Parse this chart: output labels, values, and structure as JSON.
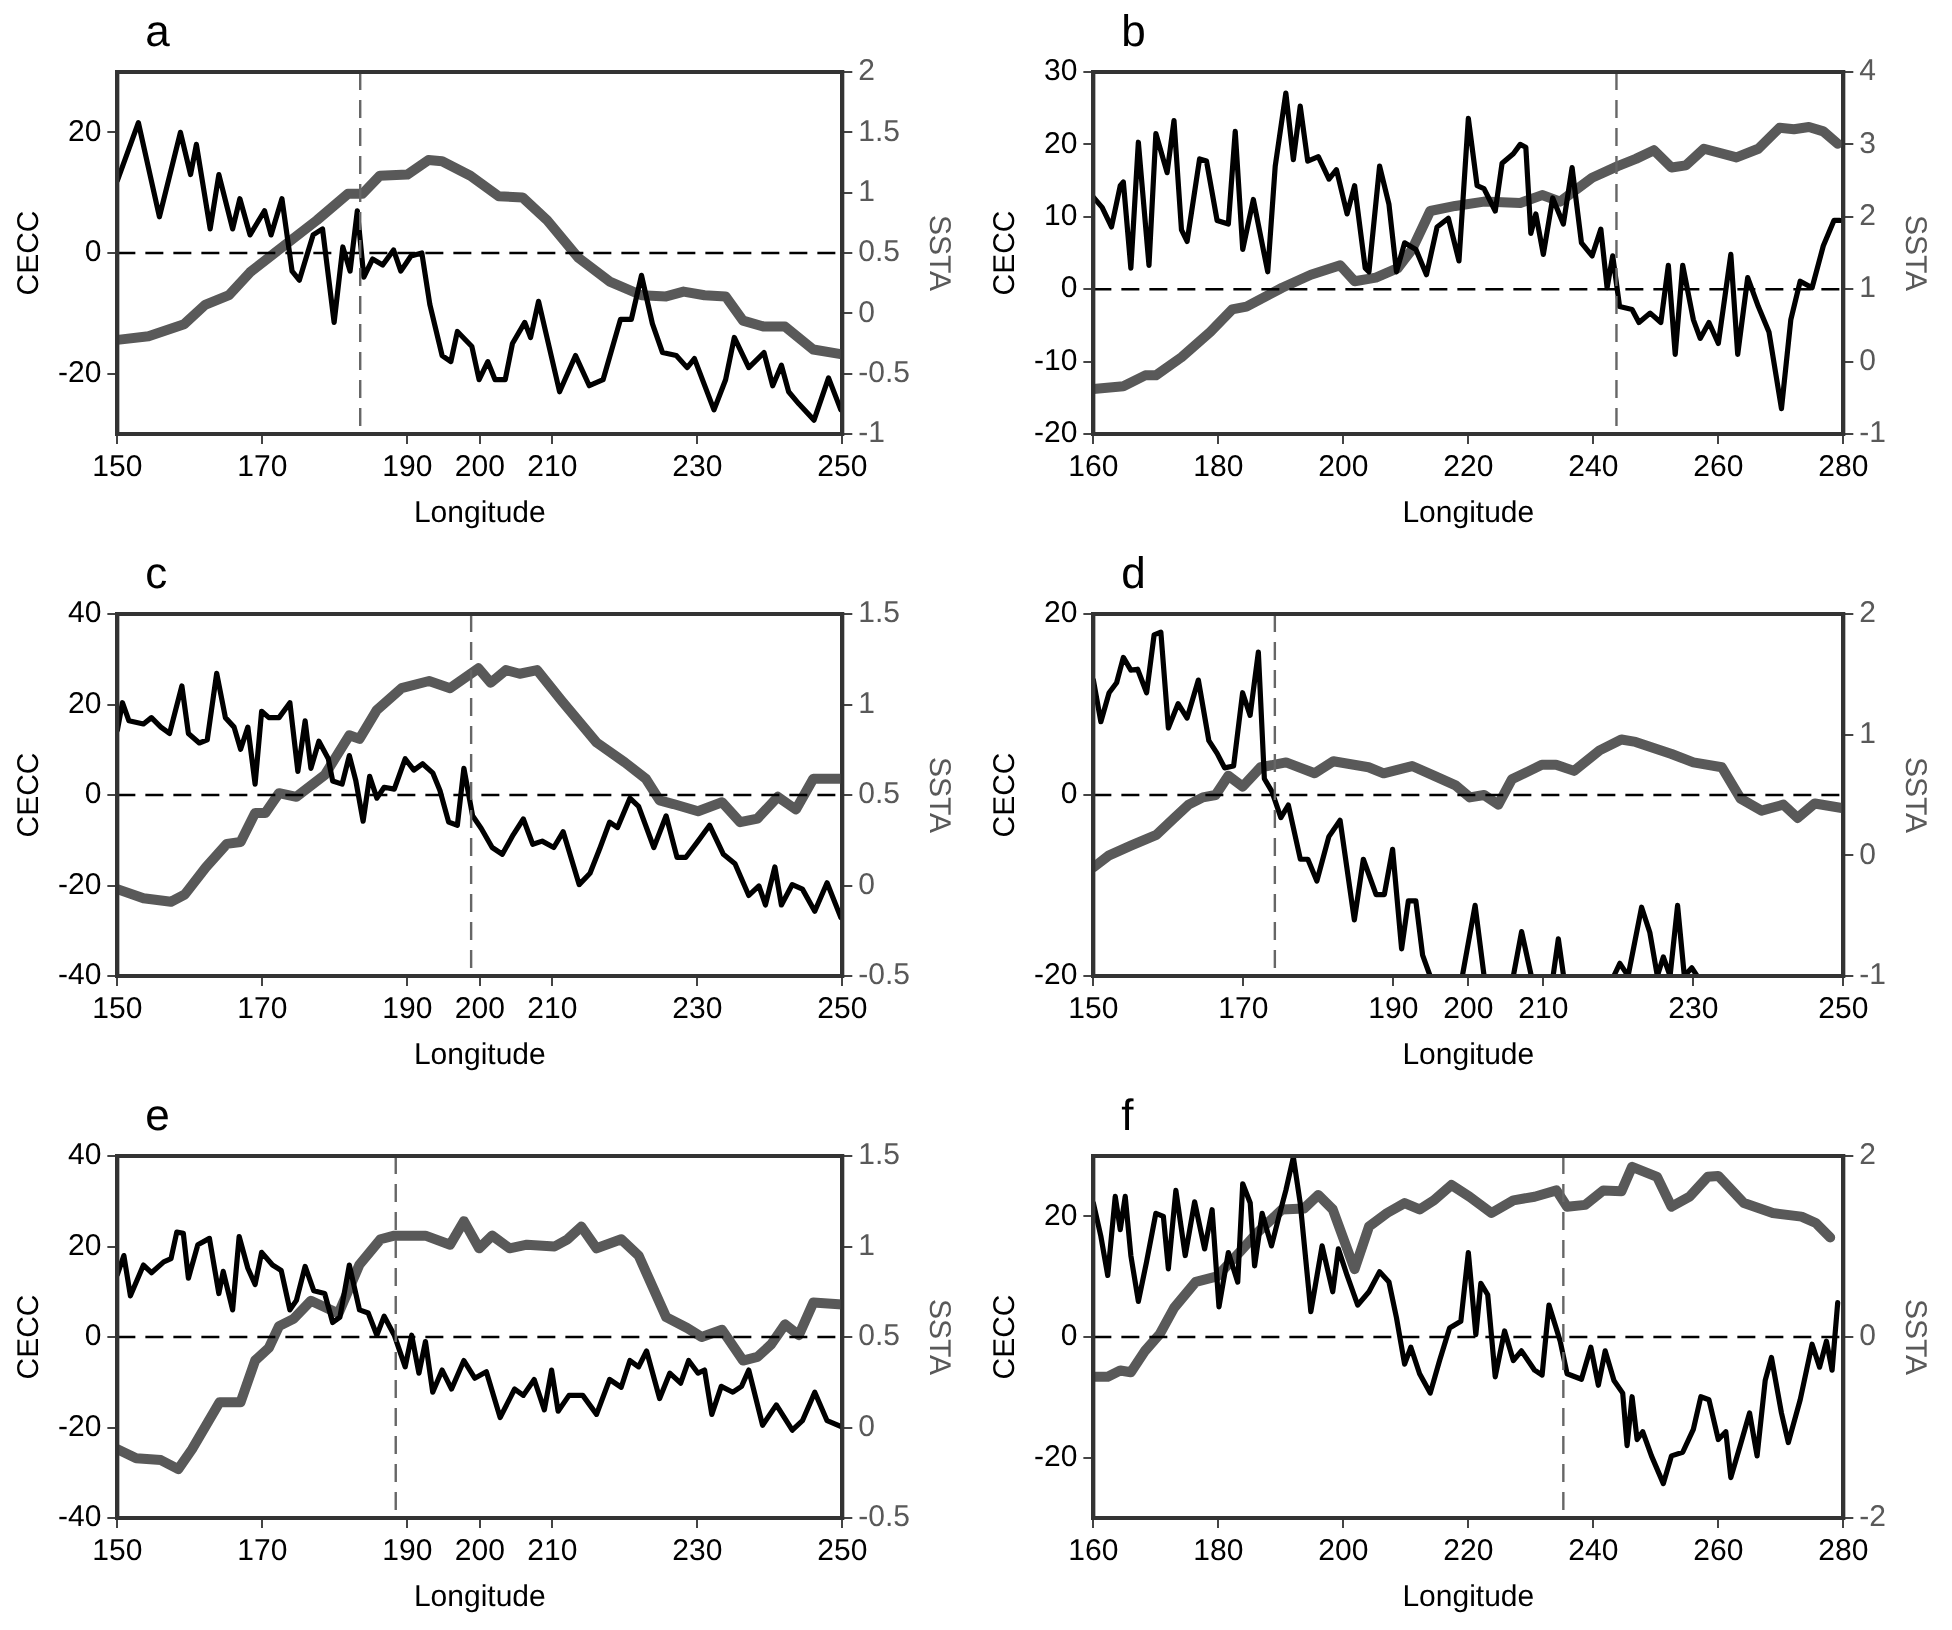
{
  "chart_data": [
    {
      "type": "line",
      "title": "a",
      "xlabel": "Longitude",
      "ylabel": "CECC",
      "y2label": "SSTA",
      "xlim": [
        150,
        250
      ],
      "xticks": [
        150,
        170,
        190,
        200,
        210,
        230,
        250
      ],
      "ylim": [
        -30,
        30
      ],
      "yticks": [
        -20,
        0,
        20
      ],
      "y2lim": [
        -1,
        2
      ],
      "y2ticks": [
        -1,
        -0.5,
        0,
        0.5,
        1,
        1.5,
        2
      ],
      "ref_lines": [
        {
          "axis": "y",
          "value": 0,
          "color": "#000000",
          "line_style": "dashed"
        },
        {
          "axis": "x",
          "value": 183.5,
          "color": "#666666",
          "line_style": "dashed"
        }
      ],
      "series": [
        {
          "color": "#000000",
          "x": [
            150,
            152.9,
            155.8,
            158.7,
            160.1,
            160.9,
            162.8,
            164,
            165.9,
            166.9,
            168.3,
            170.3,
            171.2,
            172.7,
            174.1,
            175.1,
            177,
            178.3,
            179.9,
            181.1,
            182.1,
            183.1,
            184,
            185.2,
            186.6,
            188.1,
            189.1,
            190.5,
            192,
            193.1,
            194.8,
            196,
            196.9,
            198.9,
            199.9,
            201.1,
            202.1,
            203.5,
            204.5,
            206.2,
            207,
            208.1,
            211,
            213.2,
            215.1,
            217,
            219.4,
            220.9,
            222.3,
            223.8,
            225.2,
            227.1,
            228.6,
            229.6,
            232.3,
            233.9,
            235.1,
            237.1,
            239.2,
            240.4,
            241.6,
            242.6,
            244,
            246.1,
            248.1,
            249.8
          ],
          "values": [
            12,
            21.6,
            6,
            20,
            13,
            18,
            4,
            13,
            4,
            9,
            3,
            7,
            3,
            9,
            -3,
            -4.5,
            3,
            4,
            -11.5,
            1,
            -3,
            7,
            -4,
            -1,
            -2,
            0.5,
            -3,
            -0.5,
            0,
            -8.5,
            -17,
            -18,
            -13,
            -15.5,
            -21,
            -18,
            -21,
            -21,
            -15,
            -11.5,
            -14,
            -8,
            -23,
            -17,
            -22,
            -21,
            -11,
            -11,
            -3.7,
            -11.7,
            -16.5,
            -17,
            -19,
            -17.5,
            -26,
            -21,
            -14,
            -19,
            -16.5,
            -22,
            -18.6,
            -23,
            -25,
            -27.7,
            -20.7,
            -26
          ]
        },
        {
          "color": "#595959",
          "axis": "y2",
          "x": [
            150,
            154.3,
            159.2,
            162.1,
            165.4,
            168.3,
            171.7,
            177.5,
            181.8,
            183.8,
            186.2,
            190,
            192.9,
            194.8,
            198.7,
            202.6,
            205.9,
            209.3,
            213.6,
            218,
            222.3,
            225.7,
            228.1,
            231,
            233.9,
            236.3,
            239.2,
            242.1,
            246,
            250
          ],
          "values": [
            -0.22,
            -0.19,
            -0.09,
            0.07,
            0.15,
            0.34,
            0.5,
            0.77,
            0.99,
            0.99,
            1.14,
            1.15,
            1.27,
            1.26,
            1.14,
            0.97,
            0.96,
            0.77,
            0.46,
            0.26,
            0.15,
            0.14,
            0.18,
            0.15,
            0.14,
            -0.06,
            -0.11,
            -0.11,
            -0.3,
            -0.34
          ]
        }
      ]
    },
    {
      "type": "line",
      "title": "b",
      "xlabel": "Longitude",
      "ylabel": "CECC",
      "y2label": "SSTA",
      "xlim": [
        160,
        280
      ],
      "xticks": [
        160,
        180,
        200,
        220,
        240,
        260,
        280
      ],
      "ylim": [
        -20,
        30
      ],
      "yticks": [
        -20,
        -10,
        0,
        10,
        20,
        30
      ],
      "y2lim": [
        -1,
        4
      ],
      "y2ticks": [
        -1,
        0,
        1,
        2,
        3,
        4
      ],
      "ref_lines": [
        {
          "axis": "y",
          "value": 0,
          "color": "#000000",
          "line_style": "dashed"
        },
        {
          "axis": "x",
          "value": 243.7,
          "color": "#666666",
          "line_style": "dashed"
        }
      ],
      "series": [
        {
          "color": "#000000",
          "x": [
            160,
            161.4,
            162.9,
            164.3,
            164.8,
            166,
            167.2,
            168.9,
            170,
            171.8,
            172.9,
            174.1,
            175,
            177,
            178.1,
            179.8,
            181.6,
            182.7,
            183.9,
            185.6,
            187.9,
            189.1,
            190.8,
            192,
            193.1,
            194.3,
            196,
            197.7,
            198.9,
            200.6,
            201.8,
            203.5,
            204.1,
            205.8,
            207.3,
            208.5,
            209.8,
            211.6,
            213.3,
            215,
            216.8,
            218.5,
            220,
            221.4,
            222.5,
            224.3,
            225.4,
            227.2,
            228.3,
            229.2,
            230,
            230.8,
            232,
            233.5,
            235.2,
            236.6,
            238.1,
            239.8,
            241.2,
            242.2,
            243.1,
            244.2,
            246.2,
            247.3,
            249.1,
            250.8,
            252,
            253.1,
            254.3,
            256,
            257.1,
            258.5,
            260,
            262,
            263.1,
            264.7,
            266.4,
            268.1,
            270.1,
            271.6,
            273.1,
            275,
            276.8,
            278.5,
            279.4
          ],
          "values": [
            12.7,
            11.3,
            8.6,
            14.3,
            14.8,
            2.9,
            20.3,
            3.3,
            21.5,
            16.1,
            23.3,
            8.2,
            6.6,
            18,
            17.7,
            9.5,
            9,
            21.8,
            5.5,
            12.4,
            2.4,
            17,
            27.1,
            17.9,
            25.3,
            17.7,
            18.3,
            15.2,
            16.5,
            10.4,
            14.3,
            2.9,
            2.4,
            17,
            11.7,
            2.4,
            6.4,
            5.5,
            2,
            8.6,
            9.8,
            3.9,
            23.6,
            14.3,
            13.9,
            10.8,
            17.4,
            18.7,
            20,
            19.6,
            7.7,
            10.4,
            4.8,
            12.6,
            9,
            16.8,
            6.4,
            4.6,
            8.3,
            0.2,
            4.6,
            -2.4,
            -2.8,
            -4.6,
            -3.3,
            -4.6,
            3.3,
            -9,
            3.3,
            -4.2,
            -6.8,
            -4.6,
            -7.5,
            4.8,
            -9,
            1.6,
            -2.4,
            -5.9,
            -16.5,
            -4.2,
            1.1,
            0.2,
            6,
            9.5,
            9.5
          ]
        },
        {
          "color": "#595959",
          "axis": "y2",
          "x": [
            160,
            164.8,
            168.3,
            170,
            174.1,
            178.7,
            182.2,
            184.5,
            190.2,
            194.8,
            199.5,
            201.8,
            205.2,
            208.7,
            211,
            213.9,
            217.9,
            222.5,
            228.3,
            231.8,
            234.7,
            239.8,
            243.9,
            246.8,
            249.7,
            252.5,
            254.8,
            257.7,
            262.9,
            266.4,
            269.8,
            272.1,
            274.5,
            276.8,
            279.1
          ],
          "values": [
            -0.38,
            -0.34,
            -0.19,
            -0.19,
            0.06,
            0.41,
            0.72,
            0.76,
            1.02,
            1.2,
            1.33,
            1.11,
            1.16,
            1.29,
            1.55,
            2.08,
            2.15,
            2.21,
            2.19,
            2.3,
            2.21,
            2.54,
            2.7,
            2.8,
            2.92,
            2.68,
            2.71,
            2.94,
            2.82,
            2.94,
            3.23,
            3.21,
            3.24,
            3.18,
            3.01
          ]
        }
      ]
    },
    {
      "type": "line",
      "title": "c",
      "xlabel": "Longitude",
      "ylabel": "CECC",
      "y2label": "SSTA",
      "xlim": [
        150,
        250
      ],
      "xticks": [
        150,
        170,
        190,
        200,
        210,
        230,
        250
      ],
      "ylim": [
        -40,
        40
      ],
      "yticks": [
        -40,
        -20,
        0,
        20,
        40
      ],
      "y2lim": [
        -0.5,
        1.5
      ],
      "y2ticks": [
        -0.5,
        0,
        0.5,
        1,
        1.5
      ],
      "ref_lines": [
        {
          "axis": "y",
          "value": 0,
          "color": "#000000",
          "line_style": "dashed"
        },
        {
          "axis": "x",
          "value": 198.8,
          "color": "#666666",
          "line_style": "dashed"
        }
      ],
      "series": [
        {
          "color": "#000000",
          "x": [
            150,
            150.7,
            151.6,
            153.6,
            154.7,
            156,
            157.2,
            158.9,
            159.8,
            161.3,
            162.4,
            163.7,
            164.9,
            166.1,
            167,
            168,
            169,
            169.9,
            170.9,
            172.3,
            173.8,
            174.9,
            175.9,
            176.7,
            177.8,
            179.1,
            179.7,
            181,
            182,
            182.9,
            183.9,
            184.8,
            185.8,
            186.8,
            188.2,
            189.7,
            190.9,
            192.1,
            193.5,
            194.5,
            195.7,
            196.9,
            197.8,
            199,
            200.2,
            201.7,
            203.1,
            204.6,
            206,
            207.3,
            208.6,
            210.2,
            211.5,
            213.7,
            215.2,
            216.6,
            217.9,
            219,
            220.7,
            221.9,
            224,
            225.7,
            227.2,
            228.4,
            230.1,
            231.7,
            233.6,
            235.2,
            237.1,
            238.5,
            239.4,
            240.7,
            241.6,
            243.1,
            244.5,
            246.2,
            247.9,
            249.8
          ],
          "values": [
            14.3,
            20.4,
            16.4,
            15.7,
            17.1,
            15,
            13.6,
            24.1,
            13.6,
            11.5,
            12.2,
            26.9,
            17.1,
            15,
            10.1,
            15,
            2.4,
            18.5,
            17.1,
            17.1,
            20.4,
            5.2,
            16.4,
            5.9,
            11.9,
            8,
            3.1,
            2.4,
            8.7,
            3.1,
            -5.8,
            4.1,
            -0.7,
            1.7,
            1.3,
            8,
            5.5,
            6.9,
            4.9,
            1,
            -6,
            -6.7,
            5.9,
            -4.6,
            -7.4,
            -11.6,
            -13.1,
            -8.8,
            -5.3,
            -10.9,
            -10.2,
            -11.6,
            -8.1,
            -19.8,
            -17.3,
            -11.6,
            -6,
            -7.2,
            -0.7,
            -2.5,
            -11.6,
            -4.6,
            -13.8,
            -13.8,
            -10.2,
            -6.7,
            -13.1,
            -15.2,
            -22.2,
            -20.1,
            -24.3,
            -15.9,
            -24.3,
            -19.8,
            -20.8,
            -25.7,
            -19.4,
            -27.1
          ]
        },
        {
          "color": "#595959",
          "axis": "y2",
          "x": [
            150,
            153.6,
            157.4,
            159.3,
            162.2,
            165.1,
            167,
            169,
            170.4,
            172.3,
            174.7,
            178.6,
            182,
            183.4,
            185.8,
            189.2,
            193,
            195.9,
            199.8,
            201.5,
            203.6,
            205.5,
            207.9,
            211.3,
            216.1,
            220,
            222.9,
            224.8,
            226.7,
            230.1,
            233.4,
            235.9,
            238.3,
            241.1,
            243.6,
            246,
            250
          ],
          "values": [
            -0.02,
            -0.07,
            -0.09,
            -0.05,
            0.1,
            0.23,
            0.24,
            0.4,
            0.4,
            0.51,
            0.49,
            0.61,
            0.83,
            0.81,
            0.97,
            1.09,
            1.13,
            1.09,
            1.2,
            1.12,
            1.19,
            1.17,
            1.19,
            1.02,
            0.79,
            0.68,
            0.59,
            0.47,
            0.45,
            0.41,
            0.46,
            0.35,
            0.37,
            0.49,
            0.42,
            0.59,
            0.59
          ]
        }
      ]
    },
    {
      "type": "line",
      "title": "d",
      "xlabel": "Longitude",
      "ylabel": "CECC",
      "y2label": "SSTA",
      "xlim": [
        150,
        250
      ],
      "xticks": [
        150,
        170,
        190,
        200,
        210,
        230,
        250
      ],
      "ylim": [
        -20,
        20
      ],
      "yticks": [
        -20,
        0,
        20
      ],
      "y2lim": [
        -1,
        2
      ],
      "y2ticks": [
        -1,
        0,
        1,
        2
      ],
      "ref_lines": [
        {
          "axis": "y",
          "value": 0,
          "color": "#000000",
          "line_style": "dashed"
        },
        {
          "axis": "x",
          "value": 174.2,
          "color": "#666666",
          "line_style": "dashed"
        }
      ],
      "series": [
        {
          "color": "#000000",
          "x": [
            150,
            151,
            152.1,
            153.1,
            154,
            155,
            155.9,
            157.1,
            158.1,
            159,
            160,
            161.3,
            162.5,
            164,
            165.4,
            166.5,
            167.5,
            168.7,
            169.9,
            170.9,
            172,
            172.8,
            173.8,
            175,
            176,
            177.6,
            178.6,
            179.8,
            181.4,
            182.9,
            184.8,
            186,
            187.7,
            188.8,
            189.9,
            191.1,
            192,
            193,
            193.9,
            194.9,
            197,
            199.2,
            200.9,
            202.1,
            204,
            206,
            207.1,
            208.4,
            210,
            211.3,
            212,
            212.7,
            216,
            219.4,
            220.2,
            221.3,
            223.1,
            224.2,
            225.2,
            226,
            226.9,
            227.9,
            228.8,
            229.8,
            230.5
          ],
          "values": [
            12.7,
            8.1,
            11.3,
            12.4,
            15.2,
            13.8,
            13.9,
            11.3,
            17.7,
            18,
            7.4,
            10.1,
            8.5,
            12.7,
            6,
            4.6,
            3,
            3.2,
            11.3,
            8.8,
            15.8,
            1.8,
            0.4,
            -2.5,
            -1.1,
            -7.1,
            -7.1,
            -9.5,
            -4.6,
            -2.8,
            -13.8,
            -7.1,
            -11,
            -11,
            -6,
            -17,
            -11.7,
            -11.7,
            -17.7,
            -20,
            null,
            -20,
            -12.2,
            -20,
            null,
            -20,
            -15.1,
            -20,
            null,
            -20,
            -15.9,
            -20,
            null,
            -20,
            -18.6,
            -20,
            -12.4,
            -15.2,
            -20,
            -17.9,
            -20,
            -12.2,
            -20,
            -19.1,
            -20
          ]
        },
        {
          "color": "#595959",
          "axis": "y2",
          "x": [
            150,
            152.1,
            155,
            158.4,
            160.8,
            162.7,
            164.6,
            166.3,
            168,
            169.9,
            172.3,
            175.7,
            179.5,
            182,
            186.7,
            188.7,
            192.5,
            195.4,
            198.3,
            200.2,
            202.1,
            204,
            205.8,
            209.8,
            211.7,
            214.1,
            217.5,
            220.4,
            222.3,
            227.1,
            230,
            233.8,
            236.3,
            239.1,
            242,
            243.9,
            246.2,
            250
          ],
          "values": [
            -0.1,
            0,
            0.08,
            0.17,
            0.31,
            0.42,
            0.48,
            0.5,
            0.66,
            0.57,
            0.73,
            0.77,
            0.68,
            0.78,
            0.73,
            0.68,
            0.74,
            0.66,
            0.58,
            0.48,
            0.5,
            0.42,
            0.63,
            0.75,
            0.75,
            0.7,
            0.87,
            0.96,
            0.94,
            0.84,
            0.77,
            0.73,
            0.47,
            0.37,
            0.42,
            0.31,
            0.43,
            0.39
          ]
        }
      ]
    },
    {
      "type": "line",
      "title": "e",
      "xlabel": "Longitude",
      "ylabel": "CECC",
      "y2label": "SSTA",
      "xlim": [
        150,
        250
      ],
      "xticks": [
        150,
        170,
        190,
        200,
        210,
        230,
        250
      ],
      "ylim": [
        -40,
        40
      ],
      "yticks": [
        -40,
        -20,
        0,
        20,
        40
      ],
      "y2lim": [
        -0.5,
        1.5
      ],
      "y2ticks": [
        -0.5,
        0,
        0.5,
        1,
        1.5
      ],
      "ref_lines": [
        {
          "axis": "y",
          "value": 0,
          "color": "#000000",
          "line_style": "dashed"
        },
        {
          "axis": "x",
          "value": 188.4,
          "color": "#666666",
          "line_style": "dashed"
        }
      ],
      "series": [
        {
          "color": "#000000",
          "x": [
            150,
            150.9,
            151.8,
            153.6,
            154.7,
            156.4,
            157.4,
            158.2,
            159.1,
            159.8,
            161.1,
            162.7,
            164,
            164.6,
            165.9,
            166.8,
            168,
            169,
            169.9,
            171.4,
            172.6,
            173.8,
            174.7,
            175.9,
            177.1,
            178.6,
            179.7,
            180.7,
            182,
            183.4,
            184.6,
            185.8,
            186.8,
            188.2,
            189.7,
            190.6,
            191.6,
            192.5,
            193.5,
            194.8,
            196.1,
            197.8,
            199.3,
            200.9,
            202.8,
            204.8,
            206,
            207.5,
            208.9,
            209.9,
            210.8,
            212.3,
            214.2,
            216.1,
            217.9,
            219.5,
            220.7,
            221.9,
            223,
            224.8,
            226.2,
            227.7,
            228.8,
            230.1,
            231,
            232,
            233.3,
            234.9,
            236.1,
            237.1,
            239,
            240.9,
            243.1,
            244.5,
            246.2,
            247.9,
            250
          ],
          "values": [
            13.8,
            18,
            9.1,
            15.9,
            14.2,
            16.6,
            17.3,
            23.2,
            22.9,
            13,
            20.4,
            21.8,
            9.6,
            14.5,
            6,
            22.2,
            15.2,
            11.6,
            18.7,
            15.9,
            14.7,
            6,
            8.1,
            15.6,
            10.2,
            9.6,
            3.2,
            4.4,
            15.9,
            6,
            5.3,
            0.4,
            4.6,
            0.4,
            -6.6,
            0.4,
            -8,
            -1,
            -12.2,
            -7.3,
            -11.5,
            -5.2,
            -9.1,
            -7.7,
            -17.8,
            -11.5,
            -12.9,
            -9.4,
            -16.1,
            -7.3,
            -16.4,
            -12.9,
            -12.9,
            -17.1,
            -9.4,
            -11.1,
            -5.2,
            -6.6,
            -3.1,
            -13.6,
            -8,
            -10.2,
            -5.2,
            -8,
            -7.3,
            -17.1,
            -10.9,
            -12.2,
            -10.9,
            -7.3,
            -19.5,
            -15,
            -20.6,
            -18.5,
            -12.2,
            -18.5,
            -19.9
          ]
        },
        {
          "color": "#595959",
          "axis": "y2",
          "x": [
            150,
            152.6,
            156,
            158.4,
            160.3,
            164.1,
            167,
            169,
            170.9,
            172.3,
            174.3,
            176.7,
            180.5,
            183.4,
            186.3,
            188.2,
            192.5,
            195.9,
            197.8,
            199.9,
            201.7,
            204.1,
            206.5,
            210.3,
            212.1,
            214,
            216.1,
            219.5,
            221.9,
            225.7,
            228.6,
            230.6,
            233.4,
            236.3,
            238.3,
            240.2,
            242.1,
            244,
            246,
            250
          ],
          "values": [
            -0.12,
            -0.17,
            -0.18,
            -0.23,
            -0.12,
            0.14,
            0.14,
            0.37,
            0.44,
            0.56,
            0.6,
            0.7,
            0.63,
            0.9,
            1.04,
            1.06,
            1.06,
            1.01,
            1.14,
            0.99,
            1.06,
            0.99,
            1.01,
            1,
            1.04,
            1.11,
            0.99,
            1.04,
            0.95,
            0.61,
            0.55,
            0.5,
            0.54,
            0.37,
            0.39,
            0.46,
            0.57,
            0.51,
            0.69,
            0.68
          ]
        }
      ]
    },
    {
      "type": "line",
      "title": "f",
      "xlabel": "Longitude",
      "ylabel": "CECC",
      "y2label": "SSTA",
      "xlim": [
        160,
        280
      ],
      "xticks": [
        160,
        180,
        200,
        220,
        240,
        260,
        280
      ],
      "ylim": [
        -30,
        30
      ],
      "yticks": [
        -20,
        0,
        20
      ],
      "y2lim": [
        -2,
        2
      ],
      "y2ticks": [
        -2,
        0,
        2
      ],
      "ref_lines": [
        {
          "axis": "y",
          "value": 0,
          "color": "#000000",
          "line_style": "dashed"
        },
        {
          "axis": "x",
          "value": 235.2,
          "color": "#666666",
          "line_style": "dashed"
        }
      ],
      "series": [
        {
          "color": "#000000",
          "x": [
            160,
            161.2,
            162.3,
            163.5,
            164.3,
            165.1,
            166,
            167.2,
            168.5,
            170,
            171.2,
            172,
            173.2,
            174.7,
            176.2,
            177.8,
            179,
            180.1,
            181.6,
            183.1,
            183.9,
            185.1,
            185.8,
            187,
            188.5,
            189.7,
            190.8,
            192,
            193.1,
            194.8,
            196.6,
            198.3,
            199.2,
            200.6,
            202.3,
            204.1,
            205.8,
            207.3,
            208.5,
            209.8,
            210.8,
            212.2,
            213.9,
            215.4,
            217,
            218.8,
            220,
            221.2,
            222,
            223.1,
            224.3,
            225.8,
            227.2,
            228.5,
            230.6,
            231.8,
            232.9,
            234.7,
            235.8,
            238.1,
            239.6,
            240.8,
            241.9,
            243.3,
            244.7,
            245.4,
            246.2,
            247,
            247.9,
            249.3,
            251.2,
            252.5,
            254.3,
            256,
            257.2,
            258.5,
            260,
            261.2,
            262,
            263.5,
            265,
            266.2,
            267.5,
            268.5,
            270.1,
            271.2,
            273.1,
            275,
            276.2,
            277.3,
            278.2,
            279.1
          ],
          "values": [
            22.2,
            16.7,
            10.2,
            23.3,
            17.8,
            23.3,
            13.5,
            5.9,
            12.4,
            20.5,
            20,
            11.3,
            24.3,
            13.5,
            22.4,
            14.6,
            21.1,
            5,
            14,
            9.1,
            25.4,
            22.2,
            11.8,
            20.5,
            15.1,
            20,
            24.3,
            29.8,
            22.2,
            4.2,
            15.1,
            7.5,
            14.6,
            10.2,
            5.3,
            7.5,
            10.8,
            9.1,
            3.2,
            -4.5,
            -1.7,
            -6.1,
            -9.3,
            -3.9,
            1.5,
            2.6,
            14,
            0.4,
            8.9,
            7,
            -6.6,
            1,
            -3.9,
            -2.3,
            -5.5,
            -6.3,
            5.3,
            -0.7,
            -6.1,
            -7,
            -1.7,
            -8,
            -2.3,
            -7.2,
            -9.3,
            -18,
            -9.9,
            -17,
            -15.7,
            -19.7,
            -24.3,
            -19.7,
            -19.1,
            -15.3,
            -9.9,
            -10.4,
            -17,
            -15.7,
            -23.3,
            -18,
            -12.6,
            -19.7,
            -7.2,
            -3.4,
            -12.6,
            -17.5,
            -10.4,
            -1.2,
            -5,
            -0.7,
            -5.5,
            5.7
          ]
        },
        {
          "color": "#595959",
          "axis": "y2",
          "x": [
            160,
            162.3,
            164.3,
            166,
            168.3,
            170.6,
            172.9,
            176.4,
            179.8,
            183.3,
            186.2,
            190.2,
            193.7,
            196,
            198.3,
            201.8,
            204.1,
            207,
            209.8,
            212.2,
            214.5,
            217.3,
            220.2,
            223.7,
            227.2,
            230.6,
            234.1,
            235.8,
            238.7,
            241.6,
            244.5,
            246.2,
            250.2,
            252.5,
            255.4,
            258.3,
            260,
            264.1,
            268.7,
            273.3,
            275.6,
            277.9
          ],
          "values": [
            -0.44,
            -0.44,
            -0.37,
            -0.39,
            -0.15,
            0.03,
            0.32,
            0.61,
            0.67,
            0.93,
            1.15,
            1.41,
            1.42,
            1.57,
            1.41,
            0.75,
            1.22,
            1.37,
            1.48,
            1.41,
            1.51,
            1.68,
            1.55,
            1.37,
            1.51,
            1.55,
            1.62,
            1.44,
            1.46,
            1.62,
            1.61,
            1.88,
            1.77,
            1.44,
            1.55,
            1.77,
            1.78,
            1.48,
            1.37,
            1.33,
            1.26,
            1.1
          ]
        }
      ]
    }
  ]
}
